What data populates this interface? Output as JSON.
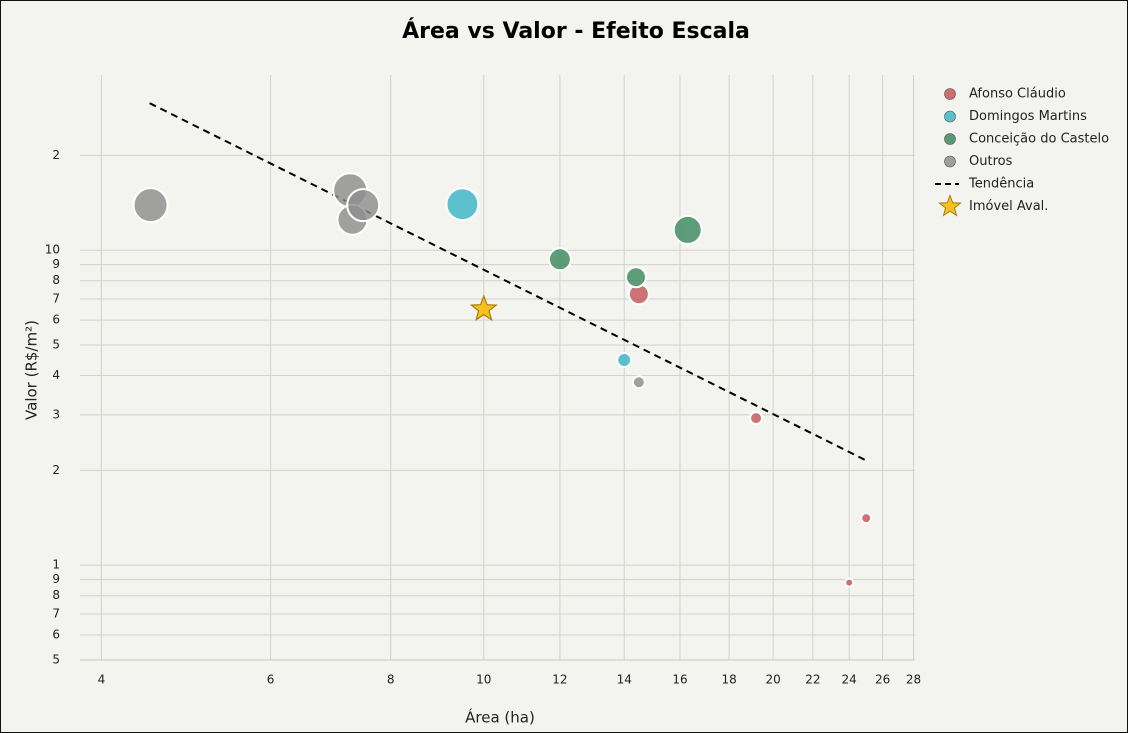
{
  "chart_data": {
    "type": "scatter",
    "title": "Área vs Valor - Efeito Escala",
    "x_label": "Área (ha)",
    "y_label": "Valor (R$/m²)",
    "x_scale": "log",
    "y_scale": "log",
    "grid": true,
    "legend": "right",
    "xlim": [
      3.8,
      28.1
    ],
    "ylim": [
      0.5,
      36
    ],
    "xticks": [
      4,
      6,
      8,
      10,
      12,
      14,
      16,
      18,
      20,
      22,
      24,
      26,
      28
    ],
    "yticks": [
      {
        "value": 0.5,
        "label": "5"
      },
      {
        "value": 0.6,
        "label": "6"
      },
      {
        "value": 0.7,
        "label": "7"
      },
      {
        "value": 0.8,
        "label": "8"
      },
      {
        "value": 0.9,
        "label": "9"
      },
      1,
      2,
      3,
      4,
      5,
      6,
      7,
      8,
      9,
      10,
      {
        "value": 20,
        "label": "2"
      }
    ],
    "series": [
      {
        "name": "Afonso Cláudio",
        "color": "#c4565a",
        "x": [
          14.5,
          19.2,
          25.0,
          24.0
        ],
        "values": [
          7.25,
          2.93,
          1.41,
          0.88
        ],
        "sizes": [
          10,
          6,
          5,
          4
        ]
      },
      {
        "name": "Domingos Martins",
        "color": "#3cb6c6",
        "x": [
          9.5,
          14.0
        ],
        "values": [
          14.0,
          4.48
        ],
        "sizes": [
          16,
          7
        ]
      },
      {
        "name": "Conceição do Castelo",
        "color": "#3d8a5f",
        "x": [
          12.0,
          14.4,
          16.3
        ],
        "values": [
          9.36,
          8.21,
          11.6
        ],
        "sizes": [
          11,
          10,
          14
        ]
      },
      {
        "name": "Outros",
        "color": "#8e8e8e",
        "x": [
          4.5,
          7.26,
          7.3,
          7.49,
          14.5
        ],
        "values": [
          13.9,
          15.5,
          12.5,
          13.9,
          3.81
        ],
        "sizes": [
          17,
          17,
          15,
          16,
          6
        ]
      }
    ],
    "trend": {
      "name": "Tendência",
      "color": "#000000",
      "x": [
        4.49,
        25.0
      ],
      "values": [
        29.3,
        2.15
      ]
    },
    "subject": {
      "name": "Imóvel Aval.",
      "color": "#f5c21b",
      "x": 10.0,
      "value": 6.5
    }
  }
}
